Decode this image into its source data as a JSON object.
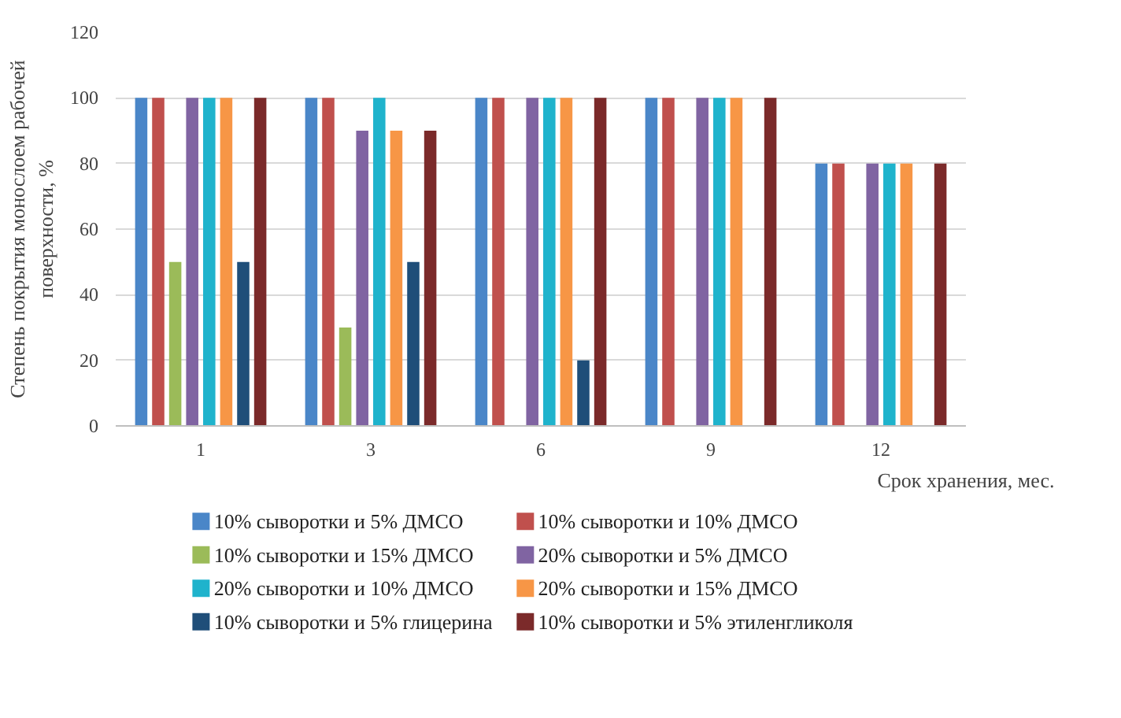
{
  "chart_data": {
    "type": "bar",
    "ylabel": "Степень покрытия монослоем рабочей поверхности, %",
    "xlabel": "Срок хранения, мес.",
    "categories": [
      "1",
      "3",
      "6",
      "9",
      "12"
    ],
    "ylim": [
      0,
      120
    ],
    "yticks": [
      0,
      20,
      40,
      60,
      80,
      100,
      120
    ],
    "grid": "y",
    "legend": "bottom",
    "series": [
      {
        "name": "10% сыворотки и 5% ДМСО",
        "color": "#4a86c8",
        "values": [
          100,
          100,
          100,
          100,
          80
        ]
      },
      {
        "name": "10% сыворотки и 10% ДМСО",
        "color": "#c0504d",
        "values": [
          100,
          100,
          100,
          100,
          80
        ]
      },
      {
        "name": "10% сыворотки и 15% ДМСО",
        "color": "#9bbb59",
        "values": [
          50,
          30,
          null,
          null,
          null
        ]
      },
      {
        "name": "20% сыворотки и 5% ДМСО",
        "color": "#8064a2",
        "values": [
          100,
          90,
          100,
          100,
          80
        ]
      },
      {
        "name": "20% сыворотки и 10% ДМСО",
        "color": "#1fb3cc",
        "values": [
          100,
          100,
          100,
          100,
          80
        ]
      },
      {
        "name": "20% сыворотки и 15% ДМСО",
        "color": "#f79646",
        "values": [
          100,
          90,
          100,
          100,
          80
        ]
      },
      {
        "name": "10% сыворотки и 5% глицерина",
        "color": "#1f4e79",
        "values": [
          50,
          50,
          20,
          null,
          null
        ]
      },
      {
        "name": "10% сыворотки и 5% этиленгликоля",
        "color": "#7b2a2a",
        "values": [
          100,
          90,
          100,
          100,
          80
        ]
      }
    ]
  }
}
